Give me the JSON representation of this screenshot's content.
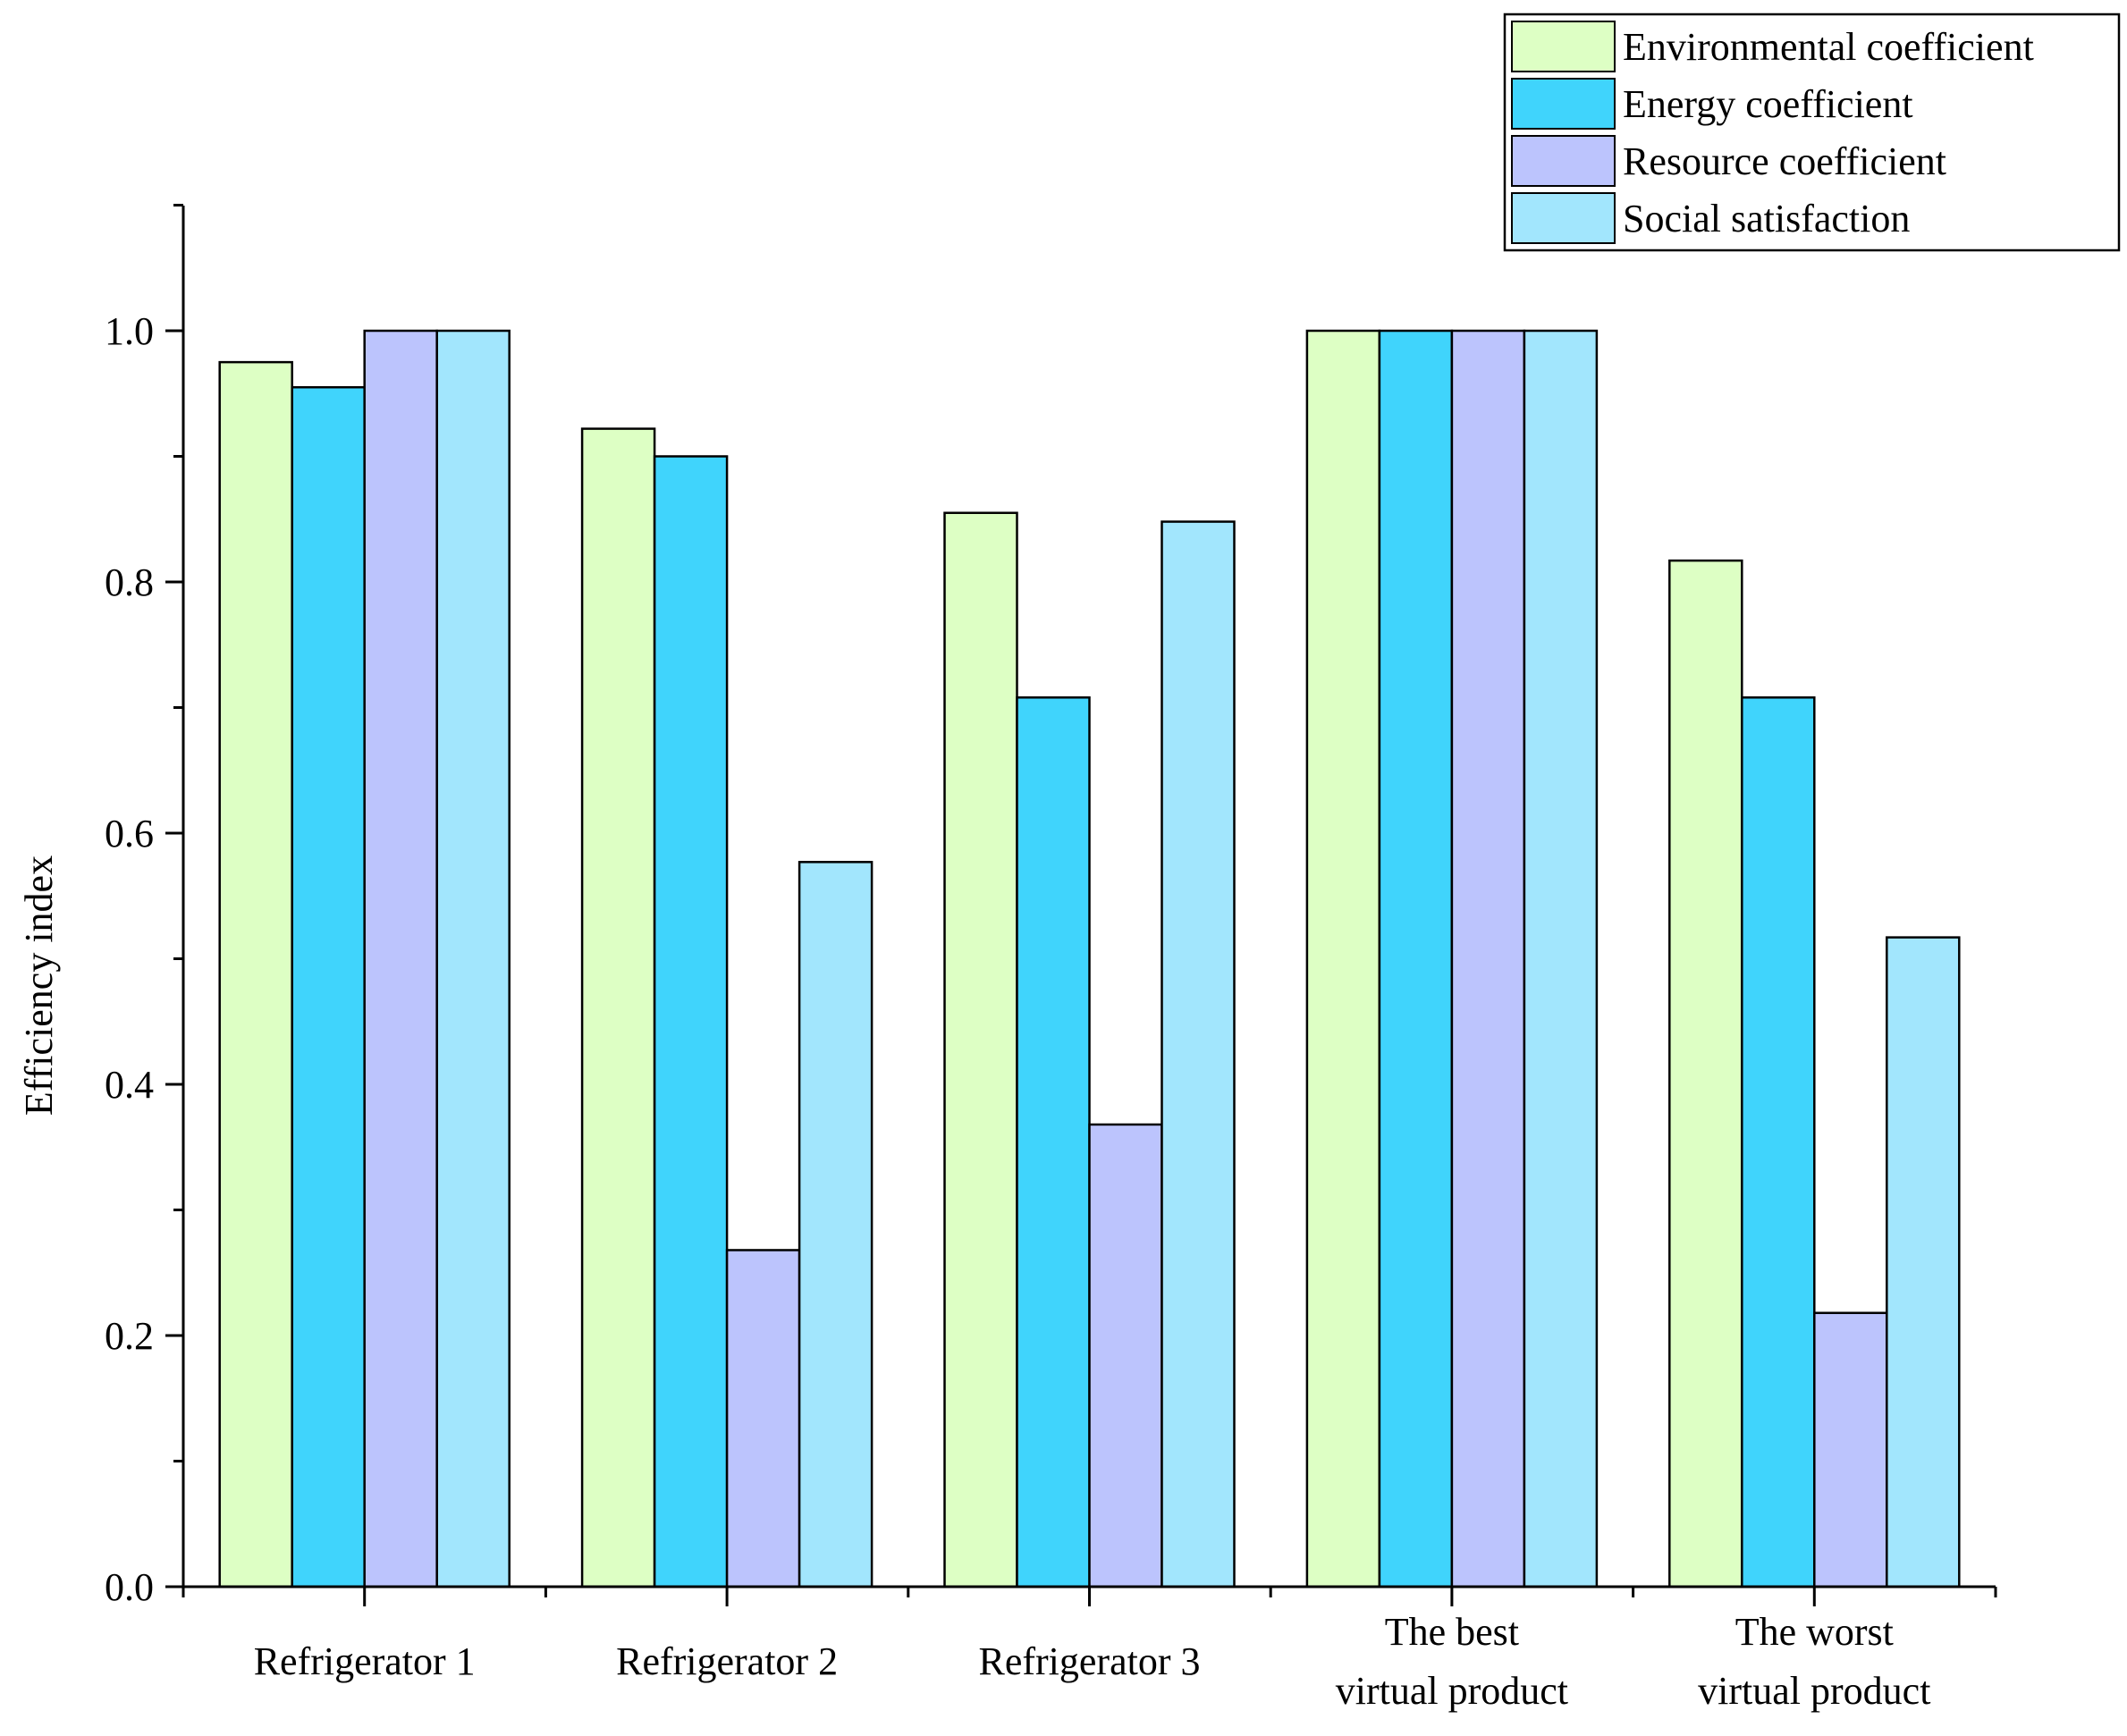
{
  "chart_data": {
    "type": "bar",
    "title": "",
    "xlabel": "",
    "ylabel": "Efficiency index",
    "ylim": [
      0,
      1.1
    ],
    "yticks": [
      "0.0",
      "0.2",
      "0.4",
      "0.6",
      "0.8",
      "1.0"
    ],
    "grid": false,
    "legend_position": "top-right",
    "categories": [
      [
        "Refrigerator 1"
      ],
      [
        "Refrigerator 2"
      ],
      [
        "Refrigerator 3"
      ],
      [
        "The best",
        "virtual product"
      ],
      [
        "The worst",
        "virtual product"
      ]
    ],
    "series": [
      {
        "name": "Environmental coefficient",
        "color": "#ddffc4",
        "values": [
          0.975,
          0.922,
          0.855,
          1.0,
          0.817
        ]
      },
      {
        "name": "Energy coefficient",
        "color": "#40d4fc",
        "values": [
          0.955,
          0.9,
          0.708,
          1.0,
          0.708
        ]
      },
      {
        "name": "Resource coefficient",
        "color": "#bcc4fd",
        "values": [
          1.0,
          0.268,
          0.368,
          1.0,
          0.218
        ]
      },
      {
        "name": "Social satisfaction",
        "color": "#a2e6fd",
        "values": [
          1.0,
          0.577,
          0.848,
          1.0,
          0.517
        ]
      }
    ]
  }
}
